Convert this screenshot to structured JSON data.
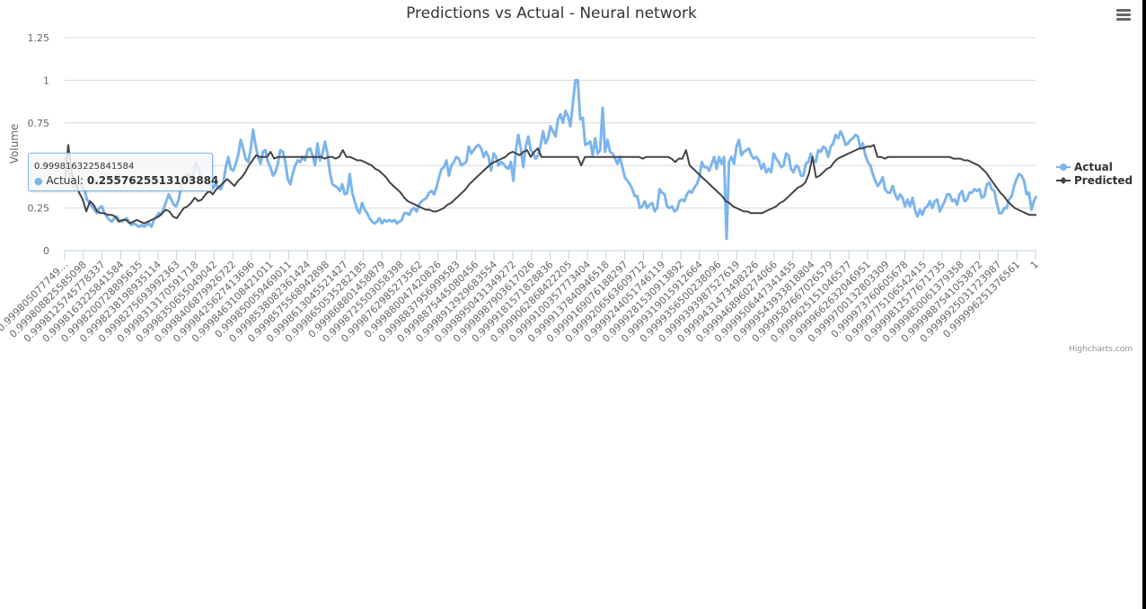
{
  "chart_data": {
    "type": "line",
    "title": "Predictions vs Actual - Neural network",
    "xlabel": "",
    "ylabel": "Volume",
    "ylim": [
      0,
      1.25
    ],
    "yticks": [
      "0",
      "0.25",
      "0.5",
      "0.75",
      "1",
      "1.25"
    ],
    "ytick_values": [
      0,
      0.25,
      0.5,
      0.75,
      1,
      1.25
    ],
    "grid": true,
    "legend_position": "right",
    "x_tick_labels": [
      "0.999805077749…",
      "0.999808825585098",
      "0.999812574577833 7",
      "0.9998163225841584",
      "0.9998200728895635",
      "0.9998238198935114",
      "0.9998275693992363",
      "0.9998313170591718",
      "0.9998350655049042",
      "0.9998406879926722",
      "0.9998425627413696",
      "0.9998463108421011",
      "0.9998500594690 11",
      "0.9998538082361424",
      "0.9998575568942898",
      "0.9998613045521427",
      "0.9998650535282185",
      "0.9998688014588 79",
      "0.9998725503058398",
      "0.9998762985273562",
      "0.9998800474208 26",
      "0.9998837956999583",
      "0.9998875445080456",
      "0.9998912929683554",
      "0.9998950431349272",
      "0.9998987903617026",
      "0.9999181571828836",
      "0.9999062868422205",
      "0.9999100357773404",
      "0.9999137840946518",
      "0.9999169076188297",
      "0.9999206563609712",
      "0.9999244051746119",
      "0.9999281530913892",
      "0.9999319015912664",
      "0.9999356500238096",
      "0.9999393987527619",
      "0.9999431473498226",
      "0.9999468960274066",
      "0.9999506447341455",
      "0.9999543933818804",
      "0.9999587667026579",
      "0.9999625151046577",
      "0.9999662632046951",
      "0.9999700132803309",
      "0.9999737606056 78",
      "0.9999775106542415",
      "0.9999812577671735",
      "0.9999850061379358",
      "0.9999887541053872",
      "0.9999925031723987",
      "0.9999962513765 61",
      "1"
    ],
    "series": [
      {
        "name": "Actual",
        "color": "#7cb5ec",
        "values": [
          0.55,
          0.5,
          0.43,
          0.4,
          0.36,
          0.36,
          0.41,
          0.37,
          0.36,
          0.3,
          0.28,
          0.26,
          0.24,
          0.22,
          0.25,
          0.26,
          0.22,
          0.2,
          0.18,
          0.17,
          0.19,
          0.2,
          0.18,
          0.17,
          0.18,
          0.19,
          0.17,
          0.15,
          0.16,
          0.15,
          0.14,
          0.15,
          0.14,
          0.15,
          0.16,
          0.14,
          0.18,
          0.2,
          0.22,
          0.21,
          0.25,
          0.29,
          0.33,
          0.3,
          0.27,
          0.26,
          0.3,
          0.38,
          0.42,
          0.44,
          0.45,
          0.4,
          0.46,
          0.52,
          0.48,
          0.43,
          0.42,
          0.42,
          0.4,
          0.38,
          0.37,
          0.39,
          0.37,
          0.36,
          0.4,
          0.49,
          0.55,
          0.48,
          0.47,
          0.51,
          0.56,
          0.65,
          0.6,
          0.54,
          0.52,
          0.59,
          0.71,
          0.62,
          0.55,
          0.51,
          0.58,
          0.59,
          0.52,
          0.49,
          0.44,
          0.46,
          0.51,
          0.59,
          0.58,
          0.52,
          0.42,
          0.39,
          0.45,
          0.5,
          0.53,
          0.52,
          0.55,
          0.53,
          0.59,
          0.6,
          0.56,
          0.5,
          0.63,
          0.53,
          0.57,
          0.64,
          0.57,
          0.46,
          0.39,
          0.38,
          0.37,
          0.35,
          0.39,
          0.33,
          0.34,
          0.45,
          0.34,
          0.29,
          0.24,
          0.22,
          0.28,
          0.24,
          0.22,
          0.19,
          0.17,
          0.16,
          0.17,
          0.19,
          0.16,
          0.18,
          0.17,
          0.18,
          0.17,
          0.18,
          0.16,
          0.17,
          0.18,
          0.22,
          0.22,
          0.21,
          0.24,
          0.25,
          0.23,
          0.27,
          0.29,
          0.3,
          0.31,
          0.34,
          0.35,
          0.33,
          0.37,
          0.43,
          0.48,
          0.49,
          0.53,
          0.44,
          0.5,
          0.52,
          0.55,
          0.54,
          0.5,
          0.51,
          0.52,
          0.61,
          0.57,
          0.59,
          0.61,
          0.62,
          0.6,
          0.55,
          0.58,
          0.55,
          0.47,
          0.57,
          0.55,
          0.5,
          0.52,
          0.51,
          0.49,
          0.48,
          0.52,
          0.41,
          0.59,
          0.68,
          0.6,
          0.49,
          0.61,
          0.67,
          0.59,
          0.57,
          0.54,
          0.56,
          0.62,
          0.7,
          0.63,
          0.66,
          0.73,
          0.7,
          0.67,
          0.77,
          0.8,
          0.75,
          0.82,
          0.79,
          0.73,
          0.86,
          1.0,
          1.0,
          0.77,
          0.78,
          0.62,
          0.63,
          0.64,
          0.56,
          0.66,
          0.57,
          0.59,
          0.84,
          0.58,
          0.65,
          0.58,
          0.57,
          0.54,
          0.51,
          0.55,
          0.49,
          0.43,
          0.41,
          0.39,
          0.36,
          0.32,
          0.32,
          0.25,
          0.26,
          0.29,
          0.25,
          0.27,
          0.28,
          0.23,
          0.25,
          0.36,
          0.34,
          0.33,
          0.26,
          0.25,
          0.26,
          0.23,
          0.24,
          0.29,
          0.3,
          0.29,
          0.33,
          0.35,
          0.34,
          0.37,
          0.39,
          0.43,
          0.52,
          0.49,
          0.49,
          0.47,
          0.51,
          0.55,
          0.48,
          0.55,
          0.51,
          0.55,
          0.07,
          0.52,
          0.55,
          0.51,
          0.61,
          0.65,
          0.56,
          0.58,
          0.59,
          0.6,
          0.56,
          0.54,
          0.55,
          0.53,
          0.48,
          0.51,
          0.46,
          0.48,
          0.46,
          0.57,
          0.54,
          0.52,
          0.49,
          0.5,
          0.57,
          0.56,
          0.48,
          0.46,
          0.5,
          0.49,
          0.44,
          0.44,
          0.51,
          0.52,
          0.57,
          0.53,
          0.52,
          0.59,
          0.58,
          0.61,
          0.6,
          0.55,
          0.61,
          0.63,
          0.68,
          0.66,
          0.7,
          0.67,
          0.62,
          0.63,
          0.65,
          0.66,
          0.68,
          0.67,
          0.6,
          0.63,
          0.56,
          0.52,
          0.5,
          0.45,
          0.41,
          0.38,
          0.4,
          0.43,
          0.36,
          0.34,
          0.34,
          0.38,
          0.33,
          0.3,
          0.33,
          0.31,
          0.26,
          0.3,
          0.26,
          0.31,
          0.24,
          0.2,
          0.24,
          0.21,
          0.25,
          0.26,
          0.29,
          0.25,
          0.29,
          0.3,
          0.23,
          0.26,
          0.29,
          0.33,
          0.33,
          0.29,
          0.3,
          0.27,
          0.33,
          0.35,
          0.29,
          0.3,
          0.34,
          0.34,
          0.36,
          0.35,
          0.36,
          0.31,
          0.32,
          0.39,
          0.4,
          0.36,
          0.35,
          0.28,
          0.22,
          0.22,
          0.25,
          0.25,
          0.3,
          0.32,
          0.38,
          0.42,
          0.45,
          0.44,
          0.41,
          0.33,
          0.34,
          0.24,
          0.29,
          0.32
        ]
      },
      {
        "name": "Predicted",
        "color": "#434348",
        "values": [
          0.4,
          0.62,
          0.45,
          0.4,
          0.34,
          0.3,
          0.23,
          0.29,
          0.27,
          0.23,
          0.22,
          0.22,
          0.21,
          0.21,
          0.2,
          0.17,
          0.18,
          0.18,
          0.16,
          0.17,
          0.18,
          0.17,
          0.16,
          0.17,
          0.18,
          0.19,
          0.2,
          0.22,
          0.24,
          0.23,
          0.2,
          0.19,
          0.22,
          0.25,
          0.26,
          0.28,
          0.31,
          0.29,
          0.3,
          0.33,
          0.35,
          0.33,
          0.36,
          0.38,
          0.4,
          0.42,
          0.4,
          0.38,
          0.41,
          0.43,
          0.46,
          0.5,
          0.53,
          0.56,
          0.55,
          0.55,
          0.55,
          0.58,
          0.54,
          0.55,
          0.55,
          0.55,
          0.55,
          0.55,
          0.55,
          0.55,
          0.55,
          0.55,
          0.55,
          0.55,
          0.55,
          0.55,
          0.54,
          0.55,
          0.55,
          0.54,
          0.55,
          0.59,
          0.55,
          0.55,
          0.54,
          0.53,
          0.53,
          0.52,
          0.51,
          0.5,
          0.48,
          0.47,
          0.45,
          0.43,
          0.4,
          0.38,
          0.36,
          0.34,
          0.31,
          0.29,
          0.28,
          0.27,
          0.26,
          0.25,
          0.24,
          0.24,
          0.23,
          0.23,
          0.24,
          0.25,
          0.27,
          0.28,
          0.3,
          0.32,
          0.34,
          0.36,
          0.39,
          0.41,
          0.43,
          0.45,
          0.47,
          0.49,
          0.51,
          0.52,
          0.53,
          0.54,
          0.55,
          0.57,
          0.58,
          0.57,
          0.56,
          0.58,
          0.59,
          0.55,
          0.58,
          0.6,
          0.55,
          0.55,
          0.55,
          0.55,
          0.55,
          0.55,
          0.55,
          0.55,
          0.55,
          0.55,
          0.55,
          0.5,
          0.55,
          0.55,
          0.55,
          0.55,
          0.55,
          0.55,
          0.55,
          0.55,
          0.55,
          0.55,
          0.55,
          0.55,
          0.55,
          0.55,
          0.55,
          0.55,
          0.54,
          0.55,
          0.55,
          0.55,
          0.55,
          0.55,
          0.55,
          0.55,
          0.54,
          0.52,
          0.54,
          0.54,
          0.59,
          0.5,
          0.48,
          0.46,
          0.44,
          0.42,
          0.4,
          0.38,
          0.36,
          0.34,
          0.32,
          0.29,
          0.28,
          0.26,
          0.25,
          0.24,
          0.23,
          0.23,
          0.22,
          0.22,
          0.22,
          0.22,
          0.23,
          0.24,
          0.25,
          0.26,
          0.28,
          0.29,
          0.31,
          0.33,
          0.35,
          0.37,
          0.38,
          0.4,
          0.45,
          0.55,
          0.43,
          0.44,
          0.46,
          0.48,
          0.49,
          0.52,
          0.54,
          0.55,
          0.56,
          0.57,
          0.58,
          0.59,
          0.6,
          0.6,
          0.61,
          0.61,
          0.62,
          0.55,
          0.55,
          0.54,
          0.55,
          0.55,
          0.55,
          0.55,
          0.55,
          0.55,
          0.55,
          0.55,
          0.55,
          0.55,
          0.55,
          0.55,
          0.55,
          0.55,
          0.55,
          0.55,
          0.55,
          0.55,
          0.54,
          0.54,
          0.54,
          0.53,
          0.53,
          0.52,
          0.51,
          0.5,
          0.48,
          0.46,
          0.43,
          0.4,
          0.37,
          0.34,
          0.32,
          0.29,
          0.27,
          0.25,
          0.24,
          0.23,
          0.22,
          0.21,
          0.21,
          0.21
        ]
      }
    ],
    "tooltip": {
      "header": "0.9998163225841584",
      "series": "Actual",
      "value": "0.2557625513103884"
    },
    "credits": "Highcharts.com"
  },
  "header": {
    "title": "Predictions vs Actual - Neural network"
  },
  "yaxis": {
    "title": "Volume",
    "labels": [
      "0",
      "0.25",
      "0.5",
      "0.75",
      "1",
      "1.25"
    ]
  },
  "legend": {
    "items": [
      {
        "label": "Actual",
        "color": "#7cb5ec"
      },
      {
        "label": "Predicted",
        "color": "#434348"
      }
    ]
  },
  "tooltip": {
    "header": "0.9998163225841584",
    "label": "Actual: ",
    "value": "0.2557625513103884"
  },
  "menu": {
    "icon": "hamburger-menu-icon"
  },
  "credits": "Highcharts.com"
}
